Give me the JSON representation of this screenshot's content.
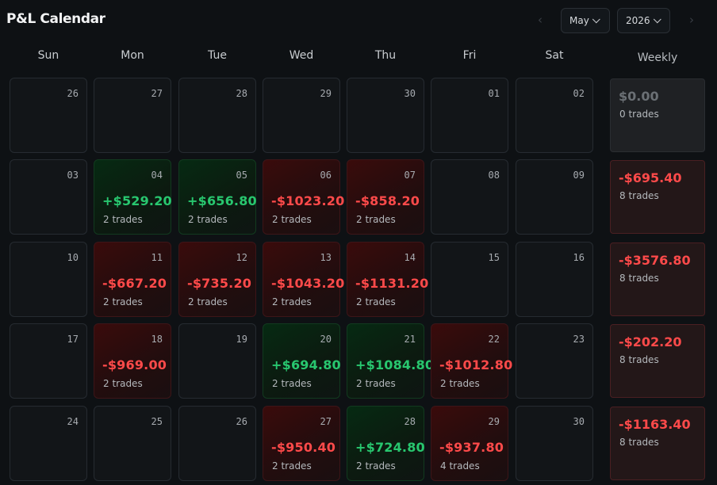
{
  "app": {
    "title": "P&L Calendar"
  },
  "nav": {
    "prev_icon": "‹",
    "next_icon": "›"
  },
  "month_select": {
    "value": "May"
  },
  "year_select": {
    "value": "2026"
  },
  "weekdays": [
    "Sun",
    "Mon",
    "Tue",
    "Wed",
    "Thu",
    "Fri",
    "Sat"
  ],
  "weekly_header": "Weekly",
  "colors": {
    "profit": "#28c76f",
    "loss": "#ff4a4a",
    "neutral": "#6b7075"
  },
  "weeks": [
    {
      "days": [
        {
          "date": "26",
          "pnl": "",
          "trades": "",
          "status": "empty"
        },
        {
          "date": "27",
          "pnl": "",
          "trades": "",
          "status": "empty"
        },
        {
          "date": "28",
          "pnl": "",
          "trades": "",
          "status": "empty"
        },
        {
          "date": "29",
          "pnl": "",
          "trades": "",
          "status": "empty"
        },
        {
          "date": "30",
          "pnl": "",
          "trades": "",
          "status": "empty"
        },
        {
          "date": "01",
          "pnl": "",
          "trades": "",
          "status": "empty"
        },
        {
          "date": "02",
          "pnl": "",
          "trades": "",
          "status": "empty"
        }
      ],
      "weekly": {
        "pnl": "$0.00",
        "trades": "0 trades",
        "status": "zero"
      }
    },
    {
      "days": [
        {
          "date": "03",
          "pnl": "",
          "trades": "",
          "status": "empty"
        },
        {
          "date": "04",
          "pnl": "+$529.20",
          "trades": "2 trades",
          "status": "pos"
        },
        {
          "date": "05",
          "pnl": "+$656.80",
          "trades": "2 trades",
          "status": "pos"
        },
        {
          "date": "06",
          "pnl": "-$1023.20",
          "trades": "2 trades",
          "status": "neg"
        },
        {
          "date": "07",
          "pnl": "-$858.20",
          "trades": "2 trades",
          "status": "neg"
        },
        {
          "date": "08",
          "pnl": "",
          "trades": "",
          "status": "empty"
        },
        {
          "date": "09",
          "pnl": "",
          "trades": "",
          "status": "empty"
        }
      ],
      "weekly": {
        "pnl": "-$695.40",
        "trades": "8 trades",
        "status": "neg"
      }
    },
    {
      "days": [
        {
          "date": "10",
          "pnl": "",
          "trades": "",
          "status": "empty"
        },
        {
          "date": "11",
          "pnl": "-$667.20",
          "trades": "2 trades",
          "status": "neg"
        },
        {
          "date": "12",
          "pnl": "-$735.20",
          "trades": "2 trades",
          "status": "neg"
        },
        {
          "date": "13",
          "pnl": "-$1043.20",
          "trades": "2 trades",
          "status": "neg"
        },
        {
          "date": "14",
          "pnl": "-$1131.20",
          "trades": "2 trades",
          "status": "neg"
        },
        {
          "date": "15",
          "pnl": "",
          "trades": "",
          "status": "empty"
        },
        {
          "date": "16",
          "pnl": "",
          "trades": "",
          "status": "empty"
        }
      ],
      "weekly": {
        "pnl": "-$3576.80",
        "trades": "8 trades",
        "status": "neg"
      }
    },
    {
      "days": [
        {
          "date": "17",
          "pnl": "",
          "trades": "",
          "status": "empty"
        },
        {
          "date": "18",
          "pnl": "-$969.00",
          "trades": "2 trades",
          "status": "neg"
        },
        {
          "date": "19",
          "pnl": "",
          "trades": "",
          "status": "empty"
        },
        {
          "date": "20",
          "pnl": "+$694.80",
          "trades": "2 trades",
          "status": "pos"
        },
        {
          "date": "21",
          "pnl": "+$1084.80",
          "trades": "2 trades",
          "status": "pos"
        },
        {
          "date": "22",
          "pnl": "-$1012.80",
          "trades": "2 trades",
          "status": "neg"
        },
        {
          "date": "23",
          "pnl": "",
          "trades": "",
          "status": "empty"
        }
      ],
      "weekly": {
        "pnl": "-$202.20",
        "trades": "8 trades",
        "status": "neg"
      }
    },
    {
      "days": [
        {
          "date": "24",
          "pnl": "",
          "trades": "",
          "status": "empty"
        },
        {
          "date": "25",
          "pnl": "",
          "trades": "",
          "status": "empty"
        },
        {
          "date": "26",
          "pnl": "",
          "trades": "",
          "status": "empty"
        },
        {
          "date": "27",
          "pnl": "-$950.40",
          "trades": "2 trades",
          "status": "neg"
        },
        {
          "date": "28",
          "pnl": "+$724.80",
          "trades": "2 trades",
          "status": "pos"
        },
        {
          "date": "29",
          "pnl": "-$937.80",
          "trades": "4 trades",
          "status": "neg"
        },
        {
          "date": "30",
          "pnl": "",
          "trades": "",
          "status": "empty"
        }
      ],
      "weekly": {
        "pnl": "-$1163.40",
        "trades": "8 trades",
        "status": "neg"
      }
    }
  ]
}
